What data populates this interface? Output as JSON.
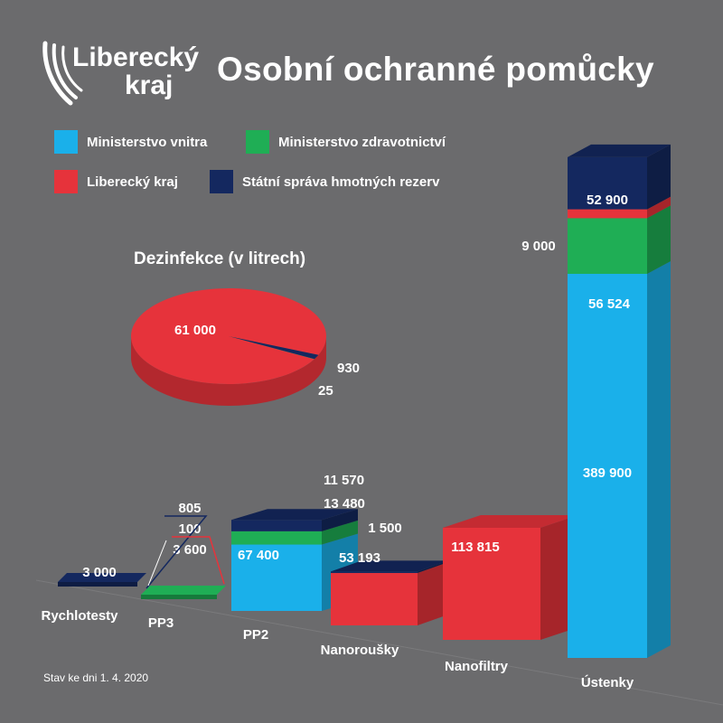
{
  "header": {
    "title": "Osobní ochranné pomůcky",
    "logo_line1": "Liberecký",
    "logo_line2": "kraj"
  },
  "footer": {
    "note": "Stav ke dni 1. 4. 2020"
  },
  "colors": {
    "Ministerstvo vnitra": "#1ab0ea",
    "Ministerstvo zdravotnictví": "#1fae55",
    "Liberecký kraj": "#e6333b",
    "Státní správa hmotných rezerv": "#14285f",
    "background": "#6b6b6d"
  },
  "chart_data": [
    {
      "type": "bar",
      "stacked": true,
      "title": "Osobní ochranné pomůcky",
      "legend": {
        "placement": "top-left",
        "entries": [
          "Ministerstvo vnitra",
          "Ministerstvo zdravotnictví",
          "Liberecký kraj",
          "Státní správa hmotných rezerv"
        ]
      },
      "categories": [
        "Rychlotesty",
        "PP3",
        "PP2",
        "Nanoroušky",
        "Nanofiltry",
        "Ústenky"
      ],
      "series": [
        {
          "name": "Ministerstvo vnitra",
          "values": [
            0,
            0,
            67400,
            0,
            0,
            389900
          ]
        },
        {
          "name": "Ministerstvo zdravotnictví",
          "values": [
            0,
            3600,
            13480,
            0,
            0,
            56524
          ]
        },
        {
          "name": "Liberecký kraj",
          "values": [
            0,
            100,
            0,
            53193,
            113815,
            9000
          ]
        },
        {
          "name": "Státní správa hmotných rezerv",
          "values": [
            3000,
            805,
            11570,
            1500,
            0,
            52900
          ]
        }
      ],
      "data_labels": {
        "Rychlotesty": [
          "3 000"
        ],
        "PP3": [
          "805",
          "100",
          "3 600"
        ],
        "PP2": [
          "11 570",
          "13 480",
          "67 400"
        ],
        "Nanoroušky": [
          "1 500",
          "53 193"
        ],
        "Nanofiltry": [
          "113 815"
        ],
        "Ústenky": [
          "52 900",
          "9 000",
          "56 524",
          "389 900"
        ]
      },
      "grid": false
    },
    {
      "type": "pie",
      "title": "Dezinfekce (v litrech)",
      "slices": [
        {
          "name": "Liberecký kraj",
          "value": 61000,
          "label": "61 000"
        },
        {
          "name": "Státní správa hmotných rezerv",
          "value": 930,
          "label": "930"
        },
        {
          "name": "Ministerstvo zdravotnictví",
          "value": 25,
          "label": "25"
        }
      ]
    }
  ]
}
